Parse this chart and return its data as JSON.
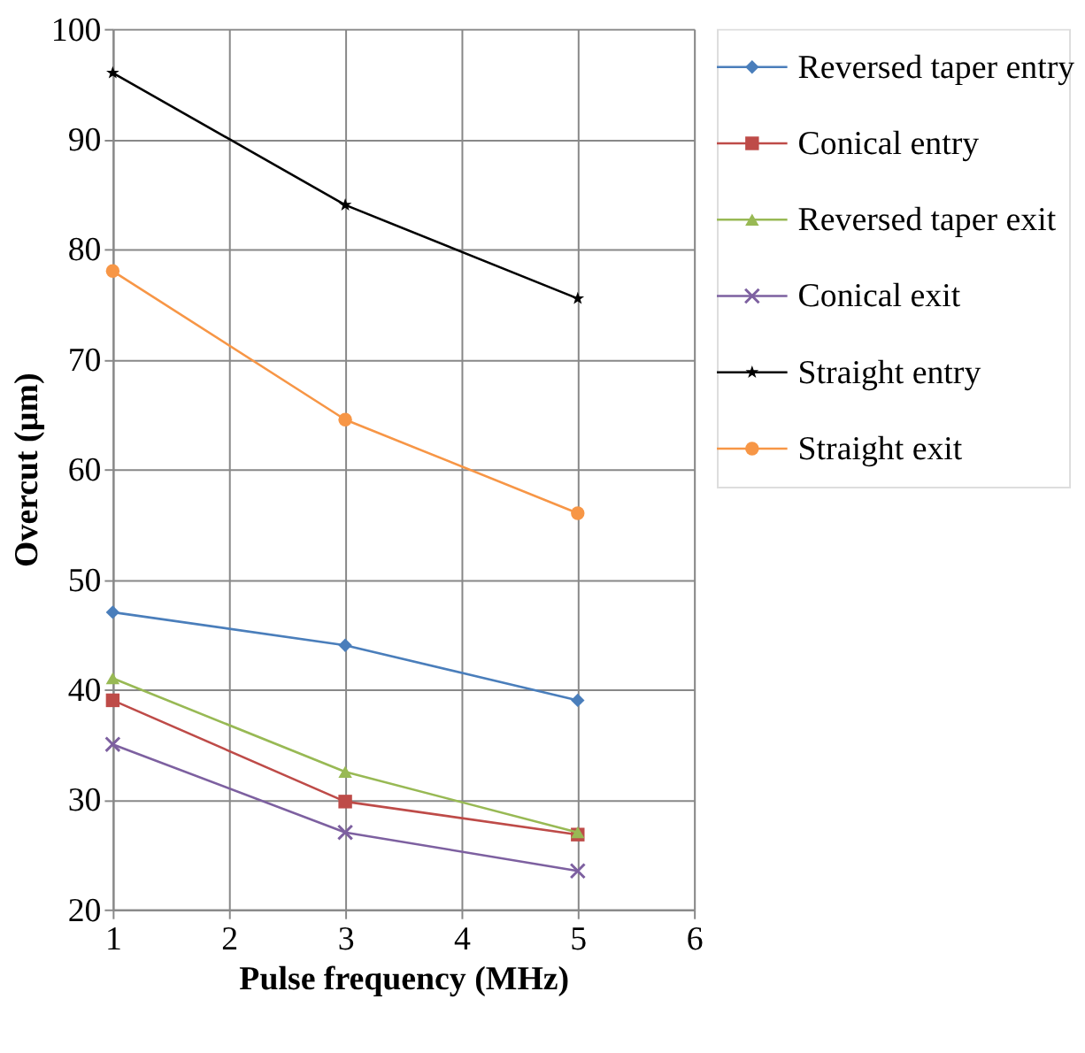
{
  "chart_data": {
    "type": "line",
    "xlabel": "Pulse frequency (MHz)",
    "ylabel": "Overcut (µm)",
    "x": [
      1,
      3,
      5
    ],
    "xlim": [
      1,
      6
    ],
    "xticks": [
      1,
      2,
      3,
      4,
      5,
      6
    ],
    "ylim": [
      20,
      100
    ],
    "yticks": [
      20,
      30,
      40,
      50,
      60,
      70,
      80,
      90,
      100
    ],
    "grid": true,
    "legend": "right",
    "line_style": "solid",
    "series": [
      {
        "name": "Reversed taper entry",
        "color": "#4a7ebb",
        "marker": "diamond",
        "values": [
          47,
          44,
          39
        ]
      },
      {
        "name": "Conical entry",
        "color": "#be4b48",
        "marker": "square",
        "values": [
          39,
          29.8,
          26.8
        ]
      },
      {
        "name": "Reversed taper exit",
        "color": "#98b954",
        "marker": "triangle",
        "values": [
          41,
          32.5,
          27
        ]
      },
      {
        "name": "Conical exit",
        "color": "#7d60a0",
        "marker": "cross",
        "values": [
          35,
          27,
          23.5
        ]
      },
      {
        "name": "Straight entry",
        "color": "#000000",
        "marker": "star",
        "values": [
          96,
          84,
          75.5
        ]
      },
      {
        "name": "Straight exit",
        "color": "#f79646",
        "marker": "circle",
        "values": [
          78,
          64.5,
          56
        ]
      }
    ]
  }
}
